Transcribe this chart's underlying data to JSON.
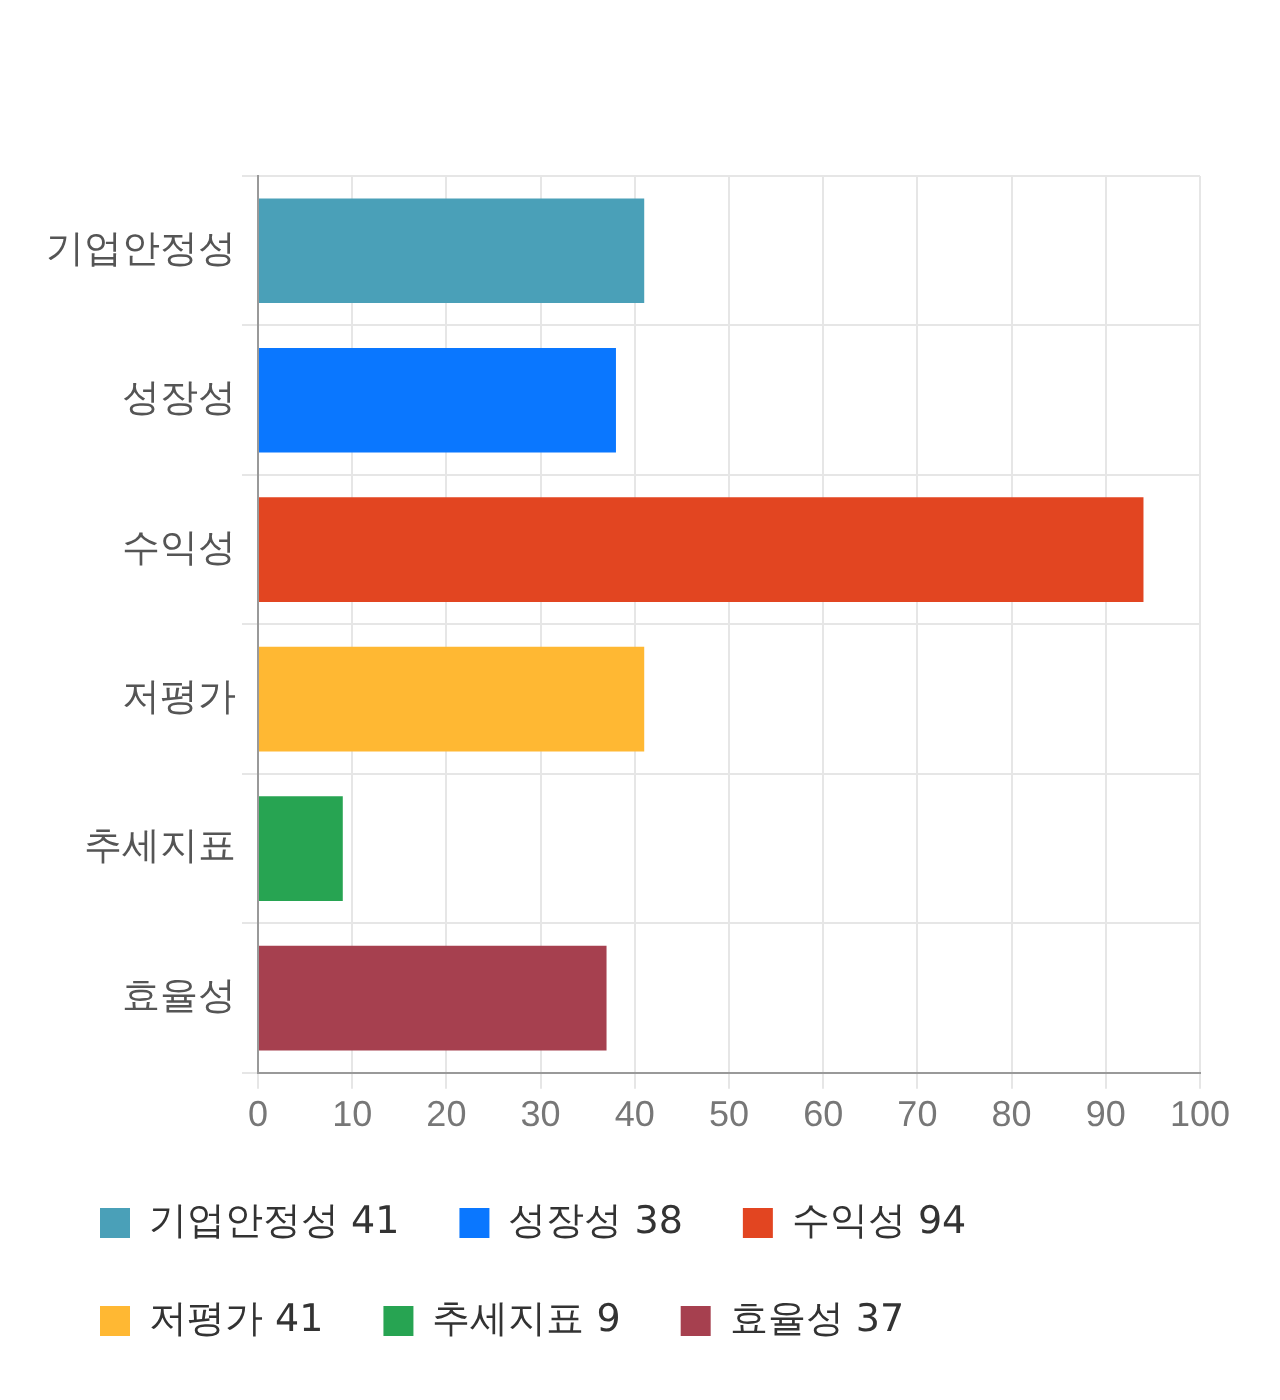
{
  "chart_data": {
    "type": "bar",
    "orientation": "horizontal",
    "stacked": true,
    "categories": [
      "기업안정성",
      "성장성",
      "수익성",
      "저평가",
      "추세지표",
      "효율성"
    ],
    "series": [
      {
        "name": "기업안정성 41",
        "color": "#4aa0b8",
        "values": [
          41,
          null,
          null,
          null,
          null,
          null
        ]
      },
      {
        "name": "성장성 38",
        "color": "#0a77ff",
        "values": [
          null,
          38,
          null,
          null,
          null,
          null
        ]
      },
      {
        "name": "수익성 94",
        "color": "#e24521",
        "values": [
          null,
          null,
          94,
          null,
          null,
          null
        ]
      },
      {
        "name": "저평가 41",
        "color": "#ffb833",
        "values": [
          null,
          null,
          null,
          41,
          null,
          null
        ]
      },
      {
        "name": "추세지표 9",
        "color": "#27a452",
        "values": [
          null,
          null,
          null,
          null,
          9,
          null
        ]
      },
      {
        "name": "효율성 37",
        "color": "#a6404f",
        "values": [
          null,
          null,
          null,
          null,
          null,
          37
        ]
      }
    ],
    "xlim": [
      0,
      100
    ],
    "xticks": [
      0,
      10,
      20,
      30,
      40,
      50,
      60,
      70,
      80,
      90,
      100
    ],
    "grid": true,
    "legend": "bottom"
  }
}
